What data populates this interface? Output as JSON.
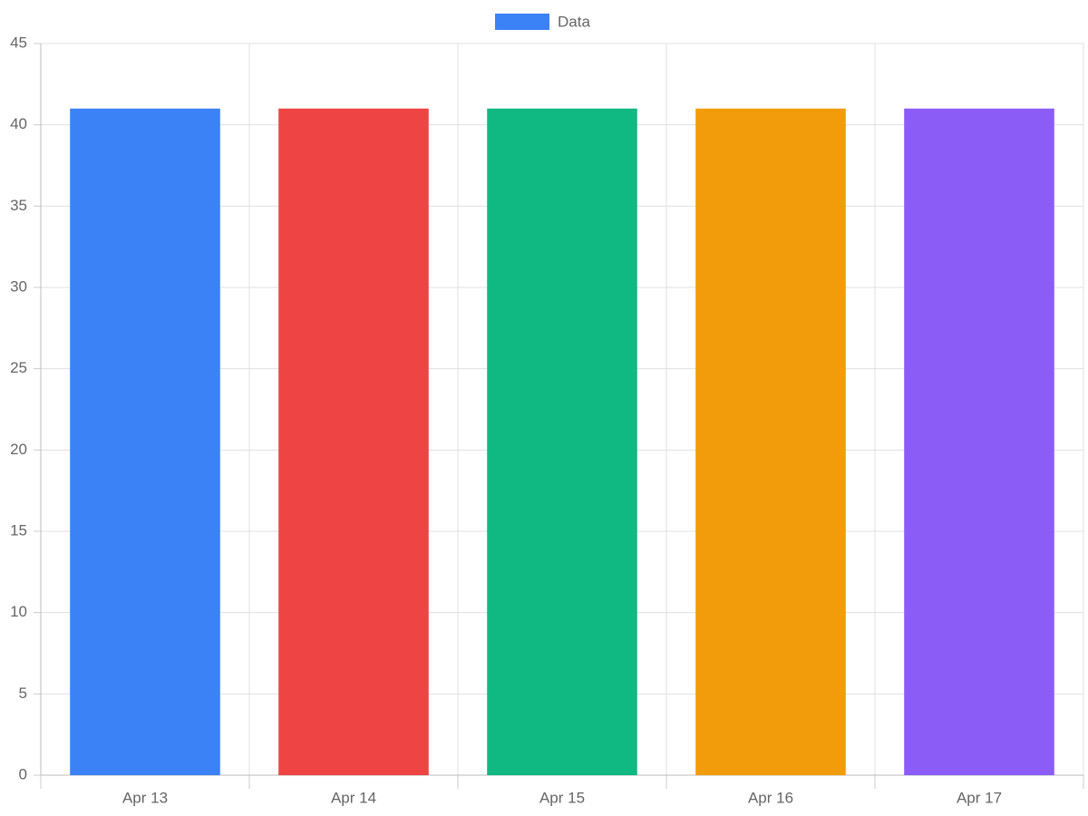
{
  "chart_data": {
    "type": "bar",
    "categories": [
      "Apr 13",
      "Apr 14",
      "Apr 15",
      "Apr 16",
      "Apr 17"
    ],
    "series": [
      {
        "name": "Data",
        "color": "#3b82f6",
        "values": [
          41,
          41,
          41,
          41,
          41
        ],
        "colors": [
          "#3b82f6",
          "#ef4444",
          "#10b981",
          "#f39c0b",
          "#8b5cf6"
        ]
      }
    ],
    "ylim": [
      0,
      45
    ],
    "yticks": [
      0,
      5,
      10,
      15,
      20,
      25,
      30,
      35,
      40,
      45
    ],
    "grid": true,
    "legend": "top"
  }
}
